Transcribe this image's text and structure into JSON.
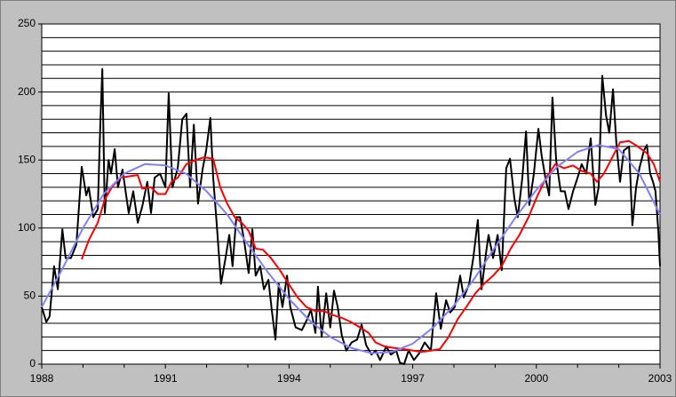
{
  "chart_data": {
    "type": "line",
    "xlim": [
      1988,
      2003
    ],
    "xticks": [
      1988,
      1991,
      1994,
      1997,
      2000,
      2003
    ],
    "minor_xticks": [
      1989,
      1990,
      1992,
      1993,
      1995,
      1996,
      1998,
      1999,
      2001,
      2002
    ],
    "ylim": [
      0,
      250
    ],
    "yticks": [
      0,
      50,
      100,
      150,
      200,
      250
    ],
    "minor_yticks": [
      10,
      20,
      30,
      40,
      60,
      70,
      80,
      90,
      110,
      120,
      130,
      140,
      160,
      170,
      180,
      190,
      210,
      220,
      230,
      240
    ],
    "grid": true,
    "series": [
      {
        "color": "#000000",
        "x": [
          1988.0,
          1988.11,
          1988.19,
          1988.3,
          1988.39,
          1988.5,
          1988.58,
          1988.71,
          1988.84,
          1988.97,
          1989.08,
          1989.14,
          1989.25,
          1989.36,
          1989.42,
          1989.47,
          1989.53,
          1989.62,
          1989.68,
          1989.77,
          1989.85,
          1989.96,
          1990.11,
          1990.22,
          1990.33,
          1990.44,
          1990.56,
          1990.65,
          1990.74,
          1990.87,
          1991.0,
          1991.08,
          1991.17,
          1991.3,
          1991.41,
          1991.51,
          1991.6,
          1991.69,
          1991.79,
          1991.9,
          1991.99,
          1992.09,
          1992.16,
          1992.25,
          1992.35,
          1992.46,
          1992.55,
          1992.63,
          1992.72,
          1992.81,
          1992.91,
          1993.02,
          1993.11,
          1993.19,
          1993.3,
          1993.39,
          1993.5,
          1993.58,
          1993.67,
          1993.75,
          1993.84,
          1993.95,
          1994.03,
          1994.16,
          1994.31,
          1994.44,
          1994.53,
          1994.64,
          1994.7,
          1994.79,
          1994.9,
          1995.0,
          1995.09,
          1995.18,
          1995.28,
          1995.39,
          1995.52,
          1995.65,
          1995.76,
          1995.87,
          1996.0,
          1996.1,
          1996.21,
          1996.36,
          1996.47,
          1996.6,
          1996.69,
          1996.79,
          1996.9,
          1997.03,
          1997.16,
          1997.29,
          1997.44,
          1997.57,
          1997.68,
          1997.81,
          1997.91,
          1998.02,
          1998.15,
          1998.24,
          1998.37,
          1998.47,
          1998.58,
          1998.67,
          1998.78,
          1998.84,
          1998.95,
          1999.06,
          1999.16,
          1999.27,
          1999.36,
          1999.47,
          1999.55,
          1999.66,
          1999.75,
          1999.83,
          1999.94,
          2000.05,
          2000.13,
          2000.22,
          2000.31,
          2000.39,
          2000.48,
          2000.59,
          2000.69,
          2000.78,
          2000.89,
          2001.0,
          2001.1,
          2001.21,
          2001.32,
          2001.43,
          2001.51,
          2001.6,
          2001.69,
          2001.77,
          2001.86,
          2001.94,
          2002.03,
          2002.12,
          2002.25,
          2002.33,
          2002.42,
          2002.5,
          2002.61,
          2002.68,
          2002.76,
          2002.83,
          2002.89,
          2002.96,
          2003.0
        ],
        "values": [
          42,
          31,
          35,
          72,
          55,
          99,
          78,
          78,
          88,
          145,
          124,
          130,
          108,
          114,
          176,
          217,
          111,
          150,
          140,
          158,
          130,
          143,
          111,
          127,
          104,
          116,
          134,
          111,
          137,
          140,
          130,
          199,
          130,
          144,
          180,
          184,
          130,
          176,
          118,
          143,
          157,
          181,
          137,
          101,
          59,
          78,
          95,
          72,
          108,
          108,
          91,
          67,
          99,
          65,
          72,
          55,
          62,
          40,
          18,
          59,
          42,
          65,
          42,
          27,
          25,
          33,
          40,
          23,
          57,
          20,
          52,
          27,
          54,
          42,
          21,
          10,
          16,
          18,
          29,
          14,
          7,
          10,
          3,
          13,
          7,
          10,
          1,
          0,
          10,
          3,
          8,
          16,
          10,
          52,
          26,
          47,
          38,
          42,
          65,
          49,
          59,
          78,
          106,
          55,
          82,
          95,
          78,
          95,
          69,
          144,
          151,
          121,
          108,
          137,
          171,
          117,
          140,
          173,
          153,
          137,
          124,
          196,
          150,
          127,
          127,
          114,
          127,
          137,
          147,
          140,
          166,
          117,
          130,
          212,
          183,
          170,
          202,
          163,
          134,
          157,
          160,
          102,
          130,
          144,
          157,
          161,
          140,
          134,
          127,
          98,
          72
        ]
      },
      {
        "color": "#ff0000",
        "x": [
          1988.97,
          1989.14,
          1989.36,
          1989.53,
          1989.7,
          1989.9,
          1990.11,
          1990.33,
          1990.44,
          1990.65,
          1990.82,
          1991.0,
          1991.15,
          1991.3,
          1991.51,
          1991.73,
          1991.94,
          1992.16,
          1992.33,
          1992.5,
          1992.68,
          1992.85,
          1993.02,
          1993.19,
          1993.37,
          1993.56,
          1993.78,
          1993.99,
          1994.21,
          1994.42,
          1994.64,
          1994.85,
          1995.07,
          1995.28,
          1995.5,
          1995.72,
          1995.93,
          1996.1,
          1996.32,
          1996.53,
          1996.79,
          1997.01,
          1997.22,
          1997.44,
          1997.66,
          1997.87,
          1998.09,
          1998.3,
          1998.52,
          1998.73,
          1998.95,
          1999.16,
          1999.38,
          1999.59,
          1999.81,
          2000.03,
          2000.24,
          2000.46,
          2000.67,
          2000.89,
          2001.1,
          2001.32,
          2001.47,
          2001.64,
          2001.86,
          2002.03,
          2002.25,
          2002.46,
          2002.68,
          2002.85,
          2003.0
        ],
        "values": [
          77,
          91,
          104,
          121,
          130,
          137,
          138,
          139,
          129,
          130,
          125,
          125,
          134,
          137,
          147,
          150,
          152,
          151,
          130,
          118,
          108,
          104,
          98,
          85,
          84,
          78,
          69,
          59,
          49,
          42,
          39,
          39,
          36,
          34,
          31,
          27,
          23,
          16,
          13,
          12,
          11,
          10,
          9,
          10,
          11,
          20,
          33,
          42,
          52,
          59,
          65,
          72,
          85,
          95,
          108,
          124,
          137,
          147,
          144,
          146,
          142,
          140,
          134,
          140,
          153,
          163,
          164,
          160,
          155,
          147,
          134
        ]
      },
      {
        "color": "#8080ff",
        "x": [
          1988,
          1988.5,
          1989,
          1989.5,
          1990,
          1990.5,
          1991,
          1991.5,
          1992,
          1992.5,
          1993,
          1993.5,
          1994,
          1994.5,
          1995,
          1995.5,
          1996,
          1996.5,
          1997,
          1997.5,
          1998,
          1998.5,
          1999,
          1999.5,
          2000,
          2000.5,
          2001,
          2001.5,
          2002,
          2002.5,
          2003
        ],
        "values": [
          42,
          70,
          100,
          125,
          140,
          147,
          146,
          140,
          127,
          110,
          88,
          67,
          48,
          32,
          20,
          12,
          8,
          9,
          15,
          27,
          43,
          63,
          86,
          108,
          128,
          145,
          156,
          161,
          158,
          140,
          110
        ]
      }
    ]
  }
}
